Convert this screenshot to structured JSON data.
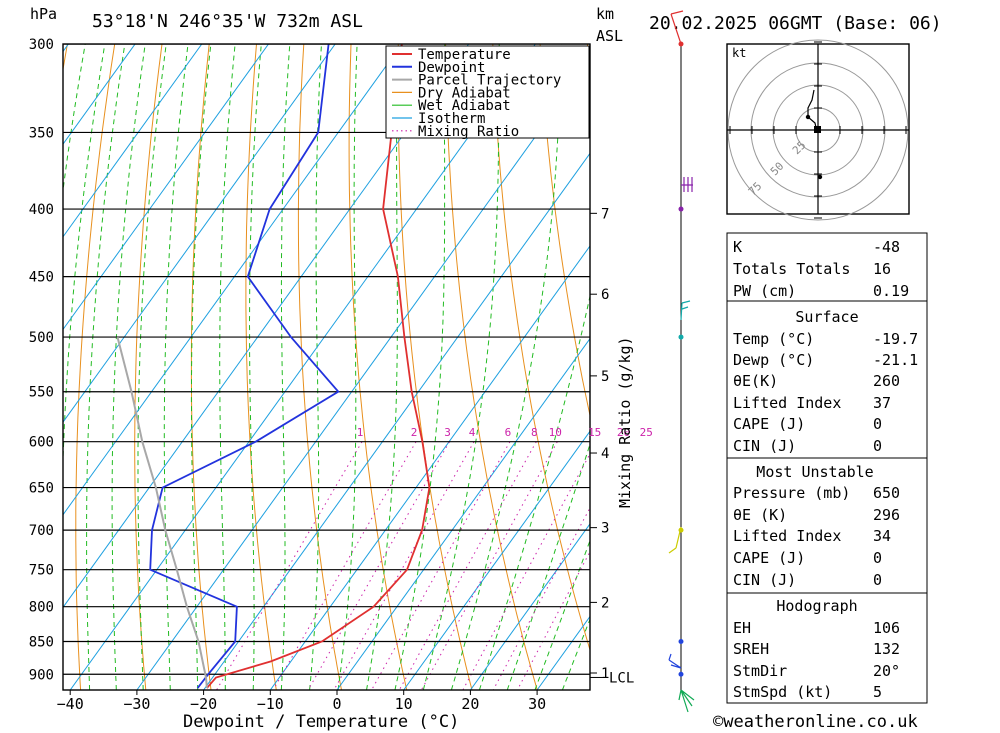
{
  "header": {
    "pressure_unit": "hPa",
    "location": "53°18'N  246°35'W  732m  ASL",
    "km_label": "km",
    "asl_label": "ASL",
    "datetime": "20.02.2025  06GMT  (Base: 06)"
  },
  "chart_data": {
    "type": "line",
    "subtype": "skew-T log-P diagram",
    "xlabel": "Dewpoint / Temperature (°C)",
    "ylabel_left": "hPa",
    "ylabel_right": "Mixing Ratio (g/kg)",
    "temperature_ticks": [
      -40,
      -30,
      -20,
      -10,
      0,
      10,
      20,
      30
    ],
    "pressure_levels": [
      300,
      350,
      400,
      450,
      500,
      550,
      600,
      650,
      700,
      750,
      800,
      850,
      900
    ],
    "pressure_range": [
      300,
      925
    ],
    "altitude_km_ticks": [
      {
        "label": "7",
        "p": 403
      },
      {
        "label": "6",
        "p": 464
      },
      {
        "label": "5",
        "p": 535
      },
      {
        "label": "4",
        "p": 612
      },
      {
        "label": "3",
        "p": 697
      },
      {
        "label": "2",
        "p": 794
      },
      {
        "label": "1",
        "p": 898
      }
    ],
    "lcl_label": "LCL",
    "lcl_pressure": 905,
    "mixing_ratio_labels": [
      "1",
      "2",
      "3",
      "4",
      "6",
      "8",
      "10",
      "15",
      "20",
      "25"
    ],
    "mixing_ratio_values": [
      1,
      2,
      3,
      4,
      6,
      8,
      10,
      15,
      20,
      25
    ],
    "legend": [
      "Temperature",
      "Dewpoint",
      "Parcel Trajectory",
      "Dry Adiabat",
      "Wet Adiabat",
      "Isotherm",
      "Mixing Ratio"
    ],
    "series": [
      {
        "name": "Temperature",
        "color": "#e03030",
        "points": [
          {
            "p": 922,
            "t": -19.7
          },
          {
            "p": 905,
            "t": -19.5
          },
          {
            "p": 880,
            "t": -13.0
          },
          {
            "p": 850,
            "t": -7.5
          },
          {
            "p": 800,
            "t": -3.5
          },
          {
            "p": 750,
            "t": -2.5
          },
          {
            "p": 700,
            "t": -4.5
          },
          {
            "p": 650,
            "t": -8.0
          },
          {
            "p": 600,
            "t": -14.0
          },
          {
            "p": 550,
            "t": -21.0
          },
          {
            "p": 500,
            "t": -28.0
          },
          {
            "p": 450,
            "t": -35.5
          },
          {
            "p": 400,
            "t": -45.0
          },
          {
            "p": 350,
            "t": -52.0
          },
          {
            "p": 300,
            "t": -60.0
          }
        ]
      },
      {
        "name": "Dewpoint",
        "color": "#2233dd",
        "points": [
          {
            "p": 922,
            "t": -21.1
          },
          {
            "p": 900,
            "t": -21.0
          },
          {
            "p": 850,
            "t": -20.5
          },
          {
            "p": 800,
            "t": -24.0
          },
          {
            "p": 750,
            "t": -41.0
          },
          {
            "p": 700,
            "t": -45.0
          },
          {
            "p": 650,
            "t": -48.0
          },
          {
            "p": 600,
            "t": -39.0
          },
          {
            "p": 550,
            "t": -32.0
          },
          {
            "p": 500,
            "t": -45.0
          },
          {
            "p": 450,
            "t": -58.0
          },
          {
            "p": 400,
            "t": -62.0
          },
          {
            "p": 350,
            "t": -63.0
          },
          {
            "p": 300,
            "t": -71.0
          }
        ]
      },
      {
        "name": "Parcel Trajectory",
        "color": "#a8a8a8",
        "points": [
          {
            "p": 922,
            "t": -19.7
          },
          {
            "p": 905,
            "t": -21.0
          },
          {
            "p": 850,
            "t": -26.0
          },
          {
            "p": 800,
            "t": -31.5
          },
          {
            "p": 750,
            "t": -37.0
          },
          {
            "p": 700,
            "t": -43.0
          },
          {
            "p": 650,
            "t": -49.0
          },
          {
            "p": 600,
            "t": -56.0
          },
          {
            "p": 550,
            "t": -63.0
          },
          {
            "p": 500,
            "t": -71.0
          }
        ]
      }
    ]
  },
  "hodograph": {
    "unit_label": "kt",
    "ring_labels": [
      "25",
      "50",
      "75"
    ]
  },
  "indices": {
    "k_label": "K",
    "k_value": "-48",
    "tt_label": "Totals Totals",
    "tt_value": "16",
    "pw_label": "PW (cm)",
    "pw_value": "0.19"
  },
  "surface": {
    "title": "Surface",
    "temp_label": "Temp (°C)",
    "temp_value": "-19.7",
    "dewp_label": "Dewp (°C)",
    "dewp_value": "-21.1",
    "theta_label": "θE(K)",
    "theta_value": "260",
    "li_label": "Lifted Index",
    "li_value": "37",
    "cape_label": "CAPE (J)",
    "cape_value": "0",
    "cin_label": "CIN (J)",
    "cin_value": "0"
  },
  "most_unstable": {
    "title": "Most Unstable",
    "pressure_label": "Pressure (mb)",
    "pressure_value": "650",
    "theta_label": "θE (K)",
    "theta_value": "296",
    "li_label": "Lifted Index",
    "li_value": "34",
    "cape_label": "CAPE (J)",
    "cape_value": "0",
    "cin_label": "CIN (J)",
    "cin_value": "0"
  },
  "hodograph_table": {
    "title": "Hodograph",
    "eh_label": "EH",
    "eh_value": "106",
    "srh_label": "SREH",
    "srh_value": "132",
    "stmdir_label": "StmDir",
    "stmdir_value": "20°",
    "stmspd_label": "StmSpd (kt)",
    "stmspd_value": "5"
  },
  "footer": {
    "copyright": "©weatheronline.co.uk"
  },
  "colors": {
    "temperature": "#e03030",
    "dewpoint": "#2233dd",
    "parcel": "#a8a8a8",
    "dry_adiabat": "#e8901e",
    "wet_adiabat": "#22bb22",
    "isotherm": "#1ea0e0",
    "mixing_ratio": "#cc22aa"
  }
}
